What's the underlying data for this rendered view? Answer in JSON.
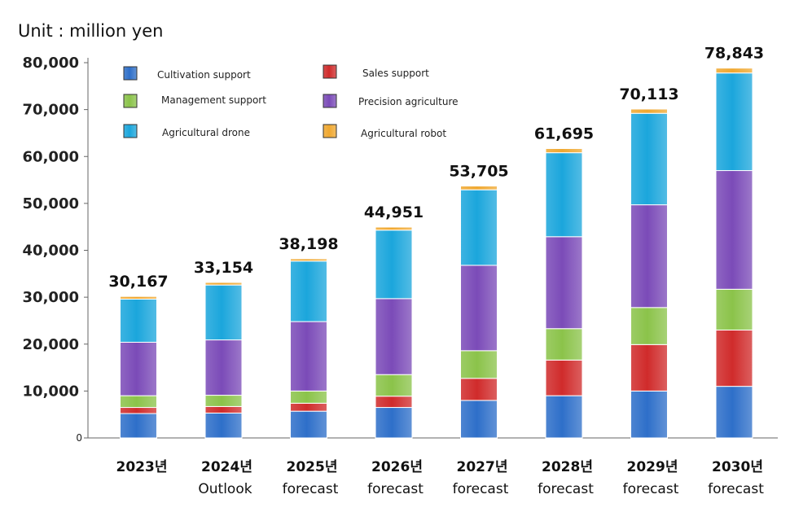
{
  "chart_data": {
    "type": "bar",
    "stacked": true,
    "unit_label": "Unit : million yen",
    "categories": [
      "2023년",
      "2024년",
      "2025년",
      "2026년",
      "2027년",
      "2028년",
      "2029년",
      "2030년"
    ],
    "category_sublabels": [
      "",
      "Outlook",
      "forecast",
      "forecast",
      "forecast",
      "forecast",
      "forecast",
      "forecast"
    ],
    "totals": [
      30167,
      33154,
      38198,
      44951,
      53705,
      61695,
      70113,
      78843
    ],
    "total_labels": [
      "30,167",
      "33,154",
      "38,198",
      "44,951",
      "53,705",
      "61,695",
      "70,113",
      "78,843"
    ],
    "ylim": [
      0,
      80000
    ],
    "yticks": [
      0,
      10000,
      20000,
      30000,
      40000,
      50000,
      60000,
      70000,
      80000
    ],
    "ytick_labels": [
      "0",
      "10,000",
      "20,000",
      "30,000",
      "40,000",
      "50,000",
      "60,000",
      "70,000",
      "80,000"
    ],
    "legend_position": "top-left",
    "series": [
      {
        "name": "Cultivation support",
        "color": "#2e6fc9",
        "values": [
          5200,
          5300,
          5700,
          6500,
          8000,
          9000,
          10000,
          11000
        ]
      },
      {
        "name": "Sales support",
        "color": "#d02b2b",
        "values": [
          1300,
          1400,
          1700,
          2400,
          4700,
          7600,
          9900,
          12000
        ]
      },
      {
        "name": "Management support",
        "color": "#8bc34a",
        "values": [
          2500,
          2400,
          2600,
          4600,
          5900,
          6700,
          7900,
          8700
        ]
      },
      {
        "name": "Precision agriculture",
        "color": "#7b4bb8",
        "values": [
          11400,
          11800,
          14800,
          16200,
          18200,
          19600,
          21900,
          25300
        ]
      },
      {
        "name": "Agricultural drone",
        "color": "#1ba6dc",
        "values": [
          9200,
          11700,
          12900,
          14600,
          16100,
          17900,
          19500,
          20800
        ]
      },
      {
        "name": "Agricultural robot",
        "color": "#f0a830",
        "values": [
          567,
          554,
          498,
          651,
          805,
          895,
          913,
          1043
        ]
      }
    ]
  }
}
